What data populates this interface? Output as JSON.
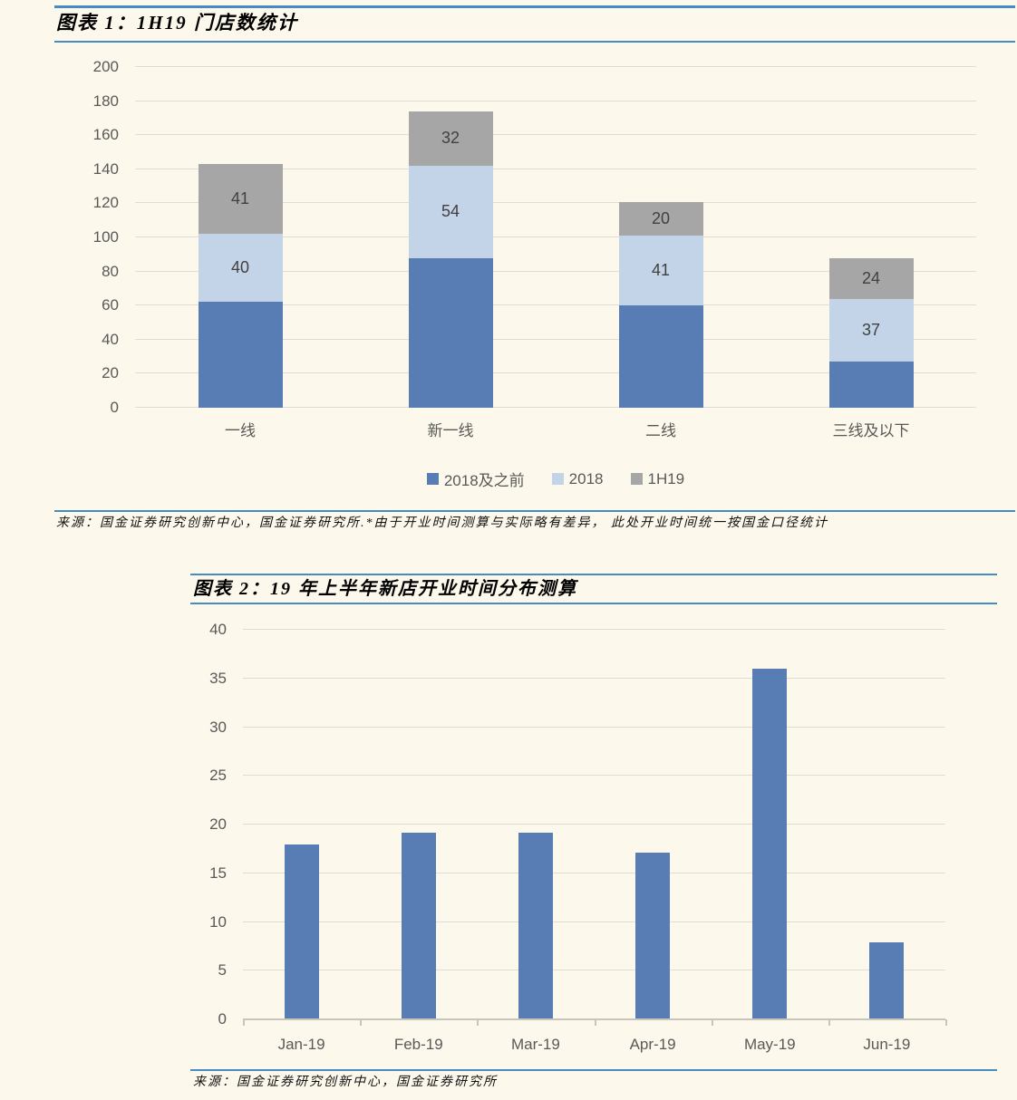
{
  "figure1": {
    "title": "图表 1：1H19 门店数统计",
    "source": "来源：国金证券研究创新中心，国金证券研究所.*由于开业时间测算与实际略有差异， 此处开业时间统一按国金口径统计"
  },
  "figure2": {
    "title": "图表 2：19 年上半年新店开业时间分布测算",
    "source": "来源：国金证券研究创新中心，国金证券研究所"
  },
  "colors": {
    "background": "#FDF8EC",
    "accent_rule_blue": "#468CC3",
    "bar_dark_blue": "#587DB4",
    "bar_light_blue": "#C3D3E8",
    "bar_gray": "#A6A6A6",
    "gridline": "#DEDCD5",
    "axis_text": "#595959",
    "data_label": "#404040"
  },
  "chart_data": [
    {
      "type": "bar",
      "stacked": true,
      "title": "1H19 门店数统计",
      "categories": [
        "一线",
        "新一线",
        "二线",
        "三线及以下"
      ],
      "series": [
        {
          "name": "2018及之前",
          "color": "#587DB4",
          "values": [
            62,
            88,
            60,
            27
          ],
          "show_labels": false
        },
        {
          "name": "2018",
          "color": "#C3D3E8",
          "values": [
            40,
            54,
            41,
            37
          ],
          "show_labels": true
        },
        {
          "name": "1H19",
          "color": "#A6A6A6",
          "values": [
            41,
            32,
            20,
            24
          ],
          "show_labels": true
        }
      ],
      "ylim": [
        0,
        200
      ],
      "ytick_step": 20,
      "grid": true,
      "legend_position": "bottom"
    },
    {
      "type": "bar",
      "stacked": false,
      "title": "19 年上半年新店开业时间分布测算",
      "categories": [
        "Jan-19",
        "Feb-19",
        "Mar-19",
        "Apr-19",
        "May-19",
        "Jun-19"
      ],
      "values": [
        18,
        19.2,
        19.2,
        17.1,
        36,
        7.9
      ],
      "bar_color": "#587DB4",
      "ylim": [
        0,
        40
      ],
      "ytick_step": 5,
      "grid": true,
      "legend_position": "none"
    }
  ]
}
